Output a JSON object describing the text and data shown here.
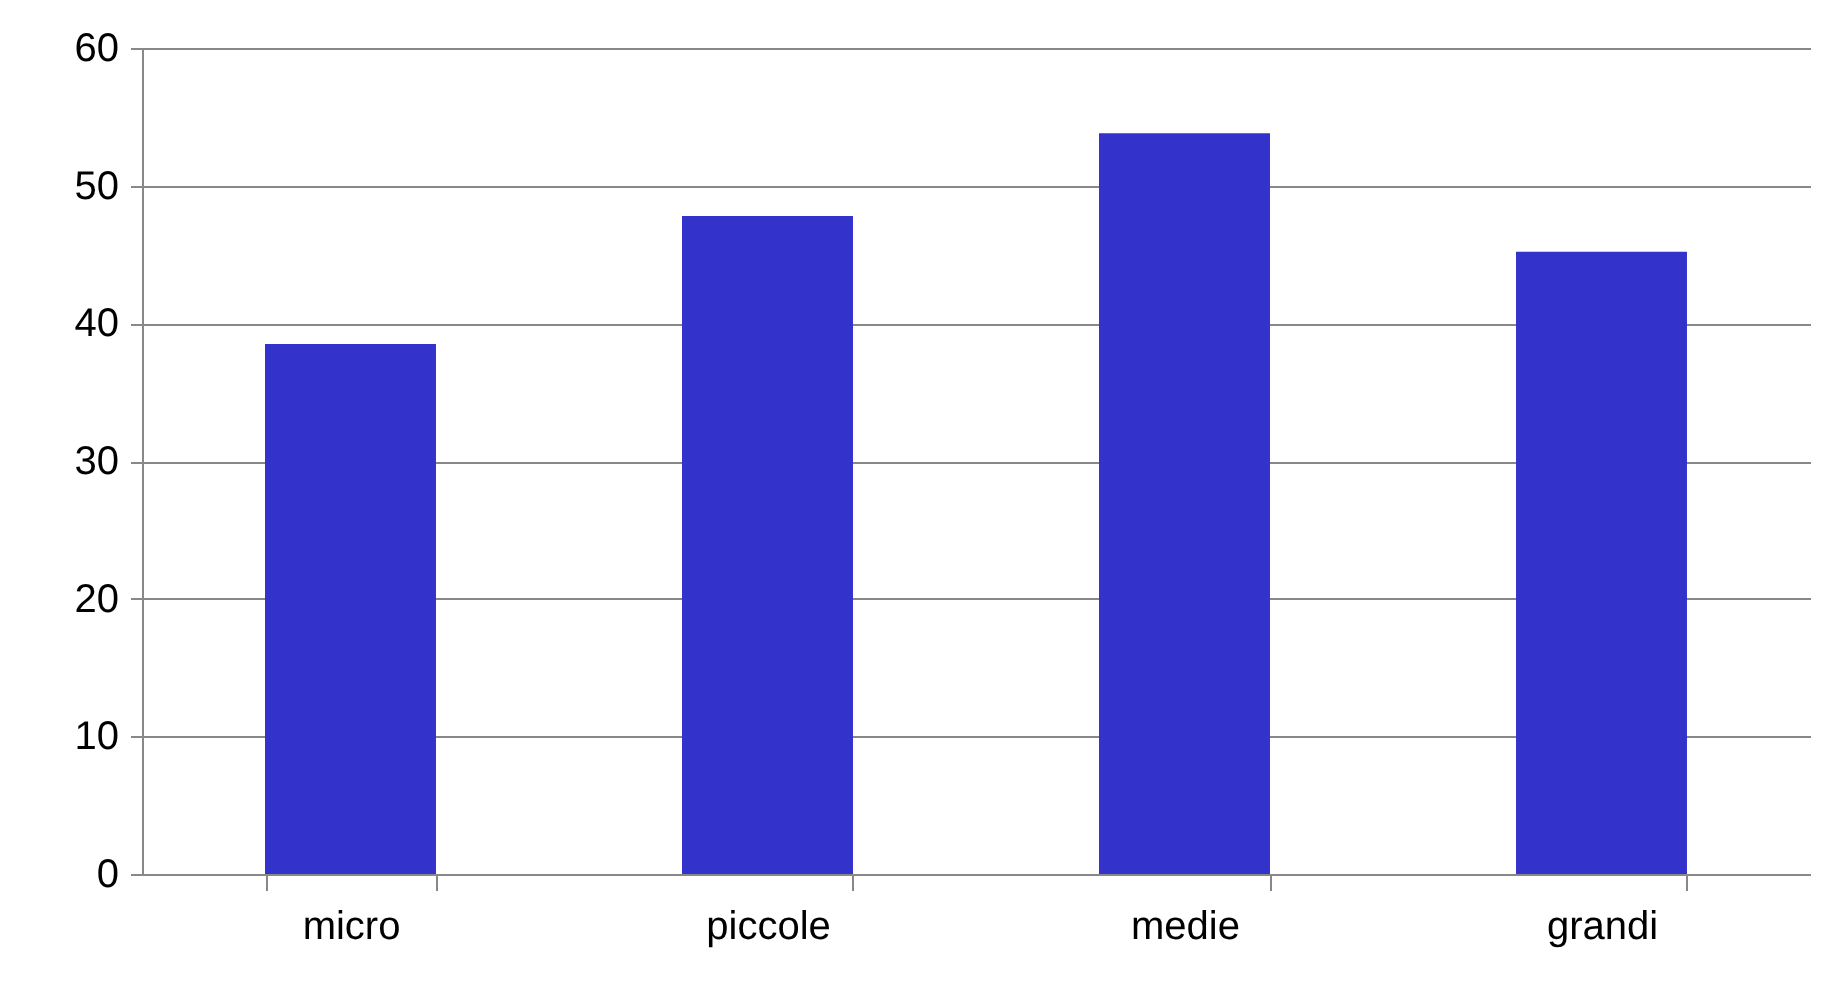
{
  "chart_data": {
    "type": "bar",
    "categories": [
      "micro",
      "piccole",
      "medie",
      "grandi"
    ],
    "values": [
      38.5,
      47.8,
      53.8,
      45.2
    ],
    "color": "#3333cc",
    "ylim": [
      0,
      60
    ],
    "yticks": [
      0,
      10,
      20,
      30,
      40,
      50,
      60
    ],
    "grid": "y"
  }
}
